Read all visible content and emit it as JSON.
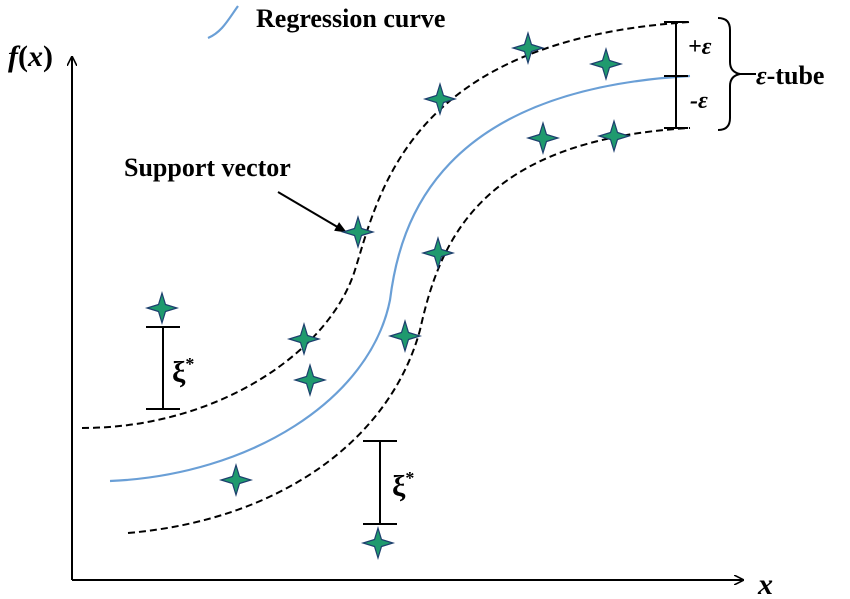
{
  "legend": {
    "label": "Regression curve",
    "color": "#6a9fd6"
  },
  "axes": {
    "y_label_f": "f",
    "y_label_paren_open": "(",
    "y_label_x": "x",
    "y_label_paren_close": ")",
    "x_label": "x"
  },
  "labels": {
    "support_vector": "Support vector",
    "plus_epsilon": "+ε",
    "minus_epsilon": "-ε",
    "tube_eps": "ε",
    "tube_suffix": "-tube",
    "xi_symbol": "ξ",
    "xi_star": "*"
  },
  "colors": {
    "tube": "#000000",
    "marker_fill": "#1f9a6e",
    "marker_stroke": "#1d3f6e"
  }
}
